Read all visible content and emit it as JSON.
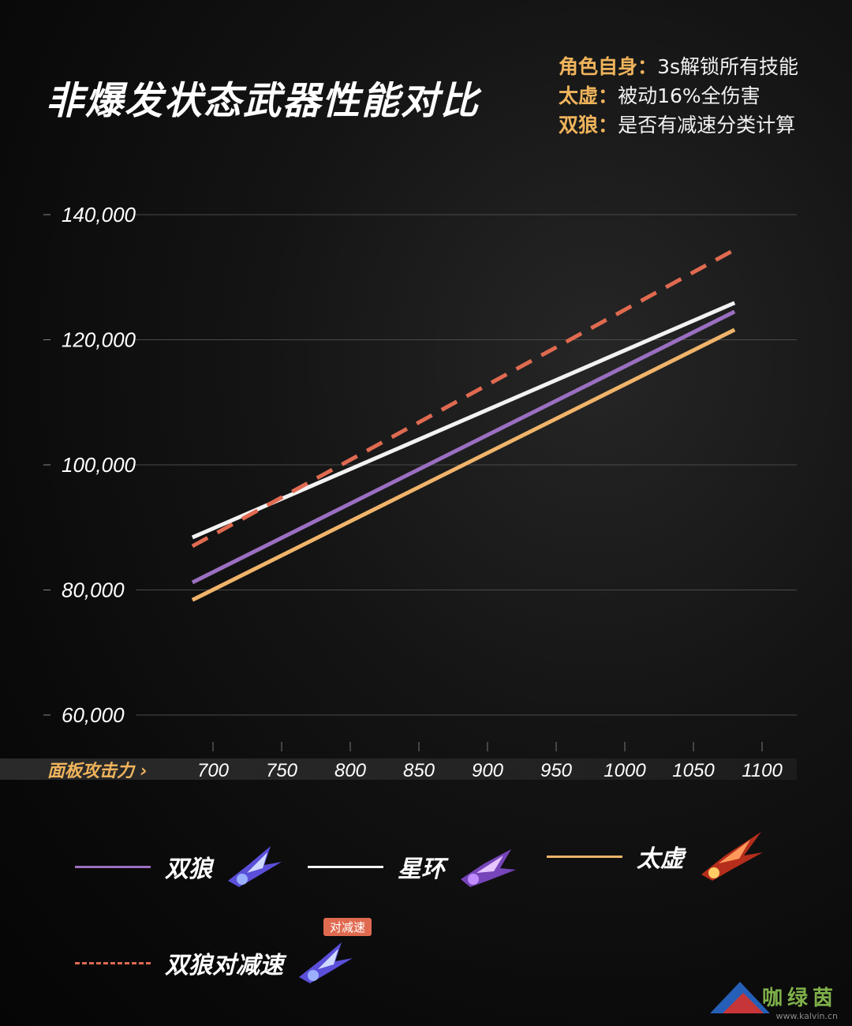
{
  "title": "非爆发状态武器性能对比",
  "notes": [
    {
      "key": "角色自身",
      "sep": "：",
      "text": "3s解锁所有技能"
    },
    {
      "key": "太虚",
      "sep": "：",
      "text": "被动16%全伤害"
    },
    {
      "key": "双狼",
      "sep": "：",
      "text": "是否有减速分类计算"
    }
  ],
  "x_axis_label": "面板攻击力",
  "colors": {
    "grid": "#4a4a4a",
    "tick_text": "#ffffff",
    "accent": "#f0b45c"
  },
  "chart_data": {
    "type": "line",
    "xlabel": "面板攻击力",
    "x_ticks": [
      700,
      750,
      800,
      850,
      900,
      950,
      1000,
      1050,
      1100
    ],
    "y_ticks": [
      60000,
      80000,
      100000,
      120000,
      140000
    ],
    "y_tick_labels": [
      "60,000",
      "80,000",
      "100,000",
      "120,000",
      "140,000"
    ],
    "xlim": [
      675,
      1110
    ],
    "ylim": [
      60000,
      140000
    ],
    "grid": "horizontal",
    "legend_position": "bottom",
    "series": [
      {
        "name": "双狼",
        "x": [
          685,
          1080
        ],
        "y": [
          81200,
          124500
        ],
        "color": "#9b6fc0",
        "dash": false
      },
      {
        "name": "星环",
        "x": [
          685,
          1080
        ],
        "y": [
          88400,
          125900
        ],
        "color": "#f2f2f2",
        "dash": false
      },
      {
        "name": "太虚",
        "x": [
          685,
          1080
        ],
        "y": [
          78400,
          121600
        ],
        "color": "#f0b46a",
        "dash": false
      },
      {
        "name": "双狼对减速",
        "x": [
          685,
          1080
        ],
        "y": [
          87000,
          134400
        ],
        "color": "#e06a50",
        "dash": true
      }
    ]
  },
  "legend_badge": "对减速",
  "watermark": {
    "text": "咖绿茵",
    "url": "www.kalvin.cn"
  }
}
